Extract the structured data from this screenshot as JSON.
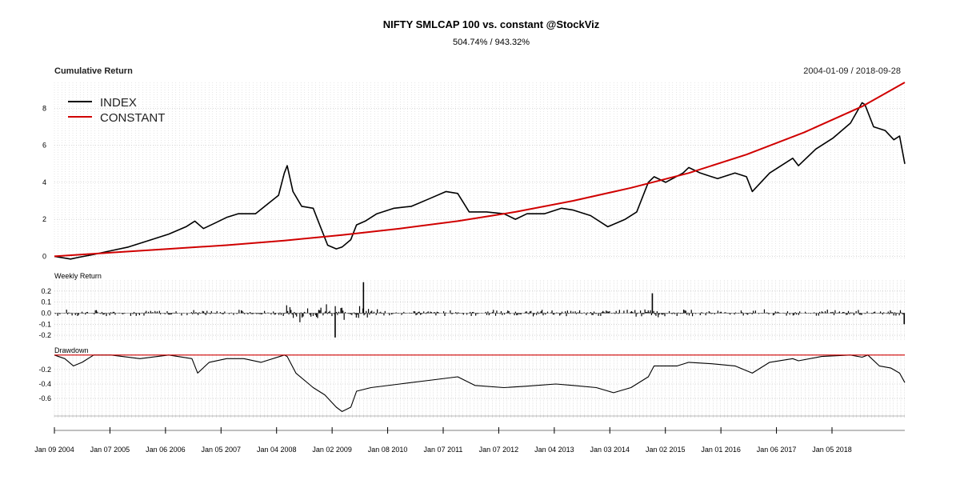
{
  "chart_data": {
    "type": "line",
    "title": "NIFTY SMLCAP 100 vs. constant @StockViz",
    "subtitle": "504.74% / 943.32%",
    "date_range": "2004-01-09 / 2018-09-28",
    "x_tick_labels": [
      "Jan 09 2004",
      "Jan 07 2005",
      "Jan 06 2006",
      "Jan 05 2007",
      "Jan 04 2008",
      "Jan 02 2009",
      "Jan 08 2010",
      "Jan 07 2011",
      "Jan 07 2012",
      "Jan 04 2013",
      "Jan 03 2014",
      "Jan 02 2015",
      "Jan 01 2016",
      "Jan 06 2017",
      "Jan 05 2018"
    ],
    "x_range": [
      2004.02,
      2018.74
    ],
    "panels": [
      {
        "title": "Cumulative Return",
        "ylim": [
          -0.2,
          9.4
        ],
        "y_ticks": [
          0,
          2,
          4,
          6,
          8
        ],
        "y_tick_labels": [
          "0",
          "2",
          "4",
          "6",
          "8"
        ],
        "legend": {
          "placement": "top-left"
        },
        "series": [
          {
            "name": "INDEX",
            "color": "#000000",
            "x": [
              2004.02,
              2004.3,
              2004.45,
              2004.7,
              2005.0,
              2005.3,
              2005.6,
              2006.0,
              2006.3,
              2006.45,
              2006.6,
              2006.8,
              2007.0,
              2007.2,
              2007.5,
              2007.7,
              2007.9,
              2008.0,
              2008.05,
              2008.15,
              2008.3,
              2008.5,
              2008.6,
              2008.75,
              2008.9,
              2009.0,
              2009.15,
              2009.25,
              2009.4,
              2009.6,
              2009.9,
              2010.2,
              2010.5,
              2010.8,
              2011.0,
              2011.2,
              2011.5,
              2011.8,
              2012.0,
              2012.2,
              2012.5,
              2012.8,
              2013.0,
              2013.3,
              2013.6,
              2013.9,
              2014.1,
              2014.3,
              2014.4,
              2014.6,
              2014.9,
              2015.0,
              2015.2,
              2015.5,
              2015.8,
              2016.0,
              2016.1,
              2016.4,
              2016.8,
              2016.9,
              2017.2,
              2017.5,
              2017.8,
              2018.0,
              2018.05,
              2018.2,
              2018.4,
              2018.55,
              2018.65,
              2018.74
            ],
            "y": [
              0,
              -0.15,
              -0.05,
              0.1,
              0.3,
              0.5,
              0.8,
              1.2,
              1.6,
              1.9,
              1.5,
              1.8,
              2.1,
              2.3,
              2.3,
              2.8,
              3.3,
              4.5,
              4.9,
              3.5,
              2.7,
              2.6,
              1.8,
              0.6,
              0.4,
              0.5,
              0.9,
              1.7,
              1.9,
              2.3,
              2.6,
              2.7,
              3.1,
              3.5,
              3.4,
              2.4,
              2.4,
              2.3,
              2.0,
              2.3,
              2.3,
              2.6,
              2.5,
              2.2,
              1.6,
              2.0,
              2.4,
              4.0,
              4.3,
              4.0,
              4.5,
              4.8,
              4.5,
              4.2,
              4.5,
              4.3,
              3.5,
              4.5,
              5.3,
              4.9,
              5.8,
              6.4,
              7.2,
              8.3,
              8.2,
              7.0,
              6.8,
              6.3,
              6.5,
              5.0
            ]
          },
          {
            "name": "CONSTANT",
            "color": "#d00000",
            "x": [
              2004.02,
              2005.0,
              2006.0,
              2007.0,
              2008.0,
              2009.0,
              2010.0,
              2011.0,
              2012.0,
              2013.0,
              2014.0,
              2015.0,
              2016.0,
              2017.0,
              2018.0,
              2018.74
            ],
            "y": [
              0,
              0.2,
              0.4,
              0.6,
              0.85,
              1.15,
              1.5,
              1.9,
              2.4,
              3.0,
              3.7,
              4.5,
              5.5,
              6.7,
              8.1,
              9.4
            ]
          }
        ]
      },
      {
        "title": "Weekly Return",
        "type": "bar",
        "ylim": [
          -0.25,
          0.3
        ],
        "y_ticks": [
          -0.2,
          -0.1,
          0.0,
          0.1,
          0.2
        ],
        "y_tick_labels": [
          "-0.2",
          "-0.1",
          "0.0",
          "0.1",
          "0.2"
        ],
        "spikes": [
          {
            "x": 2008.88,
            "y": -0.22
          },
          {
            "x": 2009.37,
            "y": 0.28
          },
          {
            "x": 2014.37,
            "y": 0.18
          },
          {
            "x": 2018.73,
            "y": -0.1
          }
        ]
      },
      {
        "title": "Drawdown",
        "ylim": [
          -0.82,
          0.02
        ],
        "y_ticks": [
          -0.6,
          -0.4,
          -0.2
        ],
        "y_tick_labels": [
          "-0.6",
          "-0.4",
          "-0.2"
        ],
        "series": [
          {
            "name": "",
            "color": "#000000",
            "x": [
              2004.02,
              2004.2,
              2004.35,
              2004.5,
              2004.7,
              2005.0,
              2005.5,
              2006.0,
              2006.4,
              2006.5,
              2006.7,
              2007.0,
              2007.3,
              2007.6,
              2008.0,
              2008.05,
              2008.2,
              2008.5,
              2008.7,
              2008.9,
              2009.0,
              2009.15,
              2009.25,
              2009.5,
              2010.0,
              2010.5,
              2011.0,
              2011.3,
              2011.8,
              2012.2,
              2012.7,
              2013.0,
              2013.4,
              2013.7,
              2014.0,
              2014.3,
              2014.4,
              2014.8,
              2015.0,
              2015.4,
              2015.8,
              2016.1,
              2016.4,
              2016.8,
              2016.9,
              2017.3,
              2017.8,
              2018.0,
              2018.1,
              2018.3,
              2018.5,
              2018.65,
              2018.74
            ],
            "y": [
              0,
              -0.05,
              -0.15,
              -0.1,
              0,
              0,
              -0.05,
              0,
              -0.05,
              -0.25,
              -0.1,
              -0.05,
              -0.05,
              -0.1,
              0,
              -0.02,
              -0.25,
              -0.45,
              -0.55,
              -0.72,
              -0.78,
              -0.72,
              -0.5,
              -0.45,
              -0.4,
              -0.35,
              -0.3,
              -0.42,
              -0.45,
              -0.43,
              -0.4,
              -0.42,
              -0.45,
              -0.52,
              -0.45,
              -0.3,
              -0.15,
              -0.15,
              -0.1,
              -0.12,
              -0.15,
              -0.25,
              -0.1,
              -0.05,
              -0.08,
              -0.02,
              0,
              -0.03,
              0,
              -0.15,
              -0.18,
              -0.25,
              -0.38
            ]
          },
          {
            "name": "",
            "color": "#d00000",
            "x": [
              2004.02,
              2018.74
            ],
            "y": [
              0,
              0
            ]
          }
        ]
      }
    ]
  }
}
